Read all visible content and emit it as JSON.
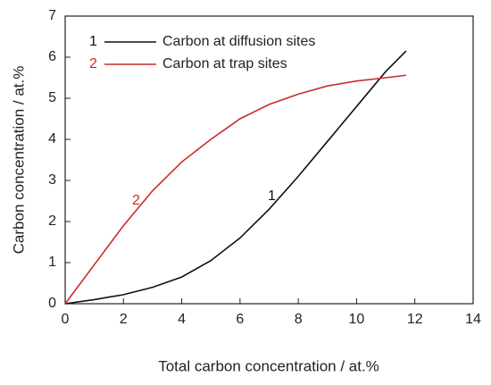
{
  "chart_data": {
    "type": "line",
    "xlabel": "Total carbon concentration / at.%",
    "ylabel": "Carbon concentration / at.%",
    "x": [
      0,
      1,
      2,
      3,
      4,
      5,
      6,
      7,
      8,
      9,
      10,
      11,
      11.7
    ],
    "series": [
      {
        "name": "Carbon at diffusion sites",
        "label": "1",
        "color": "#111111",
        "values": [
          0,
          0.1,
          0.22,
          0.4,
          0.65,
          1.05,
          1.6,
          2.3,
          3.1,
          3.95,
          4.8,
          5.65,
          6.15
        ]
      },
      {
        "name": "Carbon at trap sites",
        "label": "2",
        "color": "#cc2a2a",
        "values": [
          0,
          0.95,
          1.9,
          2.75,
          3.45,
          4.0,
          4.5,
          4.85,
          5.1,
          5.3,
          5.42,
          5.5,
          5.56
        ]
      }
    ],
    "xlim": [
      0,
      14
    ],
    "xticks": [
      0,
      2,
      4,
      6,
      8,
      10,
      12,
      14
    ],
    "ylim": [
      0,
      7
    ],
    "yticks": [
      0,
      1,
      2,
      3,
      4,
      5,
      6,
      7
    ],
    "grid": false
  }
}
